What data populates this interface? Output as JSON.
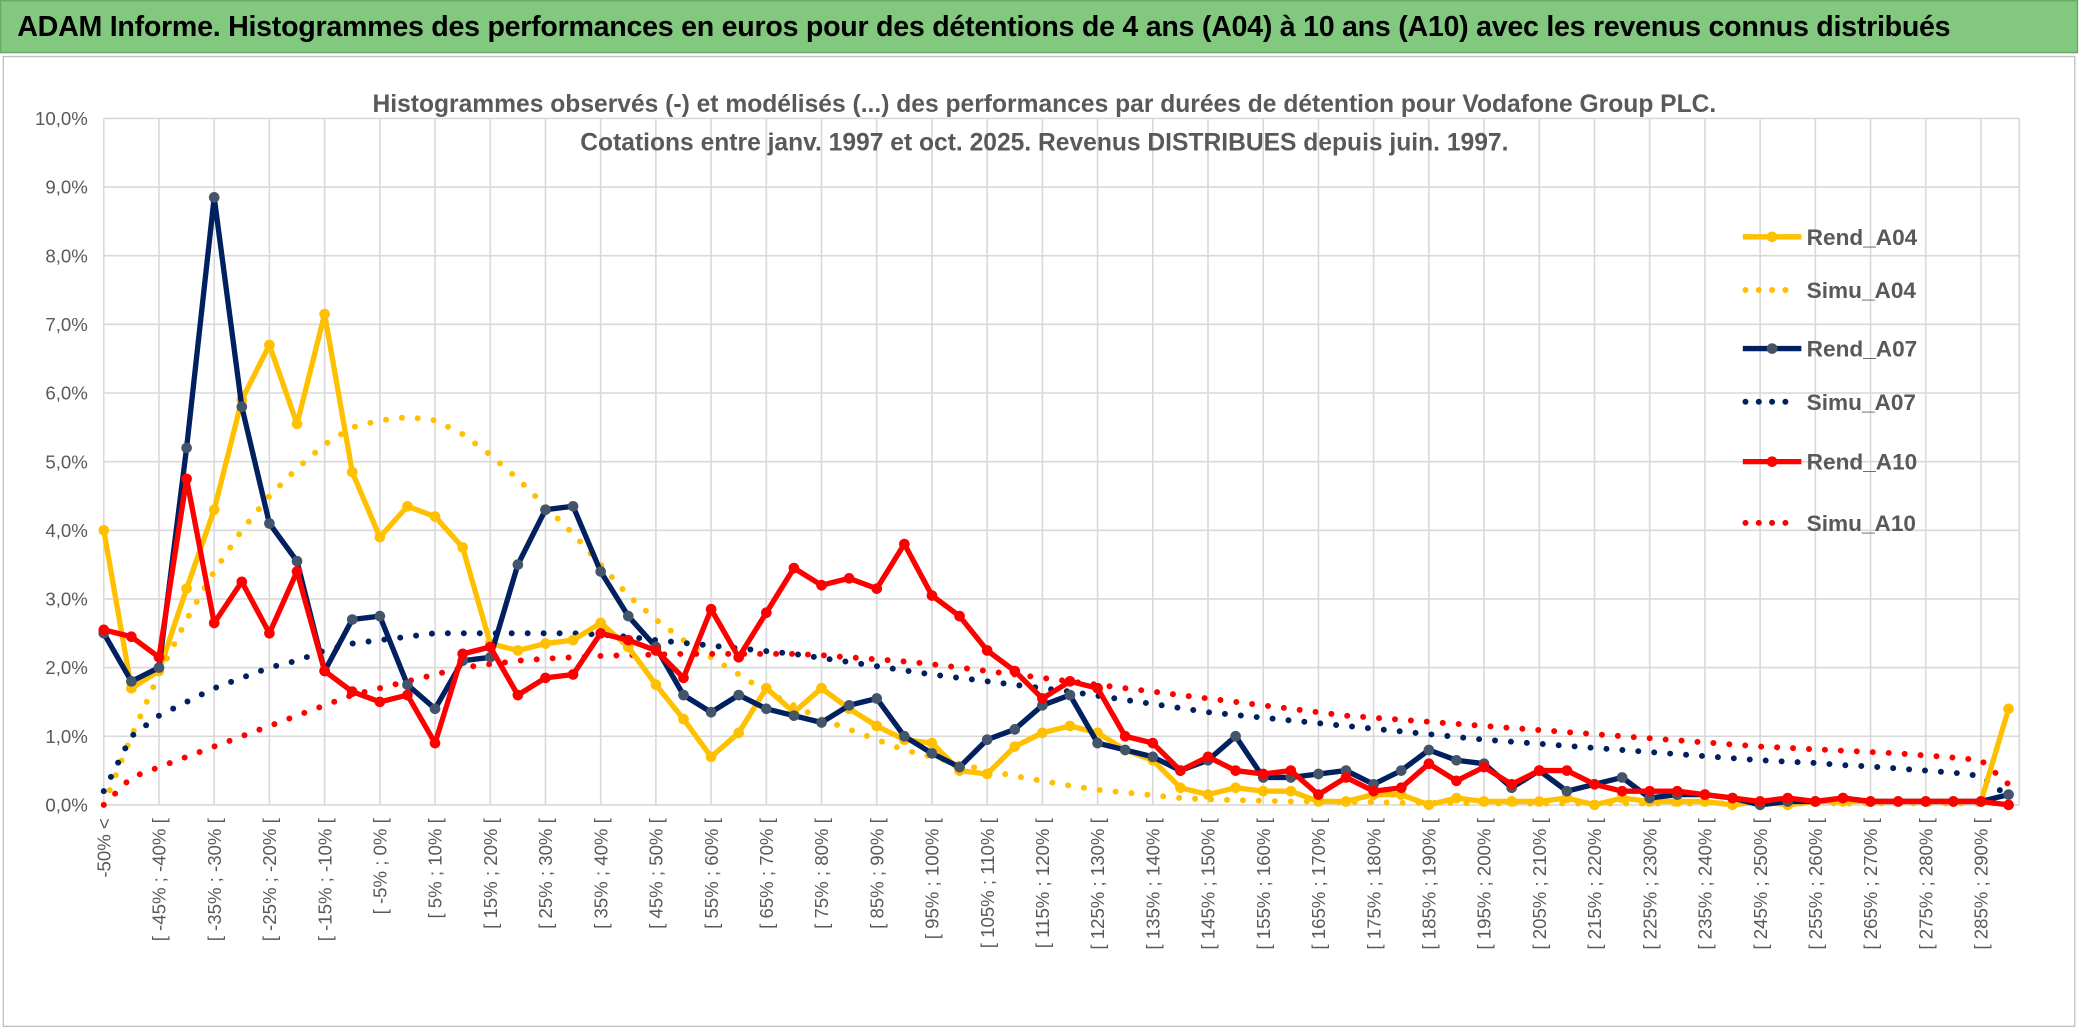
{
  "banner": {
    "title": "ADAM Informe. Histogrammes des performances en euros pour des détentions de 4 ans (A04) à 10 ans (A10) avec les revenus connus distribués"
  },
  "chart_data": {
    "type": "line",
    "title_line1": "Histogrammes observés (-) et modélisés (...) des performances par durées de détention pour Vodafone Group PLC.",
    "title_line2": "Cotations entre janv. 1997 et oct. 2025. Revenus DISTRIBUES depuis juin. 1997.",
    "xlabel": "",
    "ylabel": "",
    "ylim": [
      0,
      10
    ],
    "ytick_labels": [
      "0,0%",
      "1,0%",
      "2,0%",
      "3,0%",
      "4,0%",
      "5,0%",
      "6,0%",
      "7,0%",
      "8,0%",
      "9,0%",
      "10,0%"
    ],
    "x_tick_labels": [
      "-50% <",
      "[ -45% ; -40% [",
      "[ -35% ; -30% [",
      "[ -25% ; -20% [",
      "[ -15% ; -10% [",
      "[ -5% ; 0% [",
      "[ 5% ; 10% [",
      "[ 15% ; 20% [",
      "[ 25% ; 30% [",
      "[ 35% ; 40% [",
      "[ 45% ; 50% [",
      "[ 55% ; 60% [",
      "[ 65% ; 70% [",
      "[ 75% ; 80% [",
      "[ 85% ; 90% [",
      "[ 95% ; 100% [",
      "[ 105% ; 110% [",
      "[ 115% ; 120% [",
      "[ 125% ; 130% [",
      "[ 135% ; 140% [",
      "[ 145% ; 150% [",
      "[ 155% ; 160% [",
      "[ 165% ; 170% [",
      "[ 175% ; 180% [",
      "[ 185% ; 190% [",
      "[ 195% ; 200% [",
      "[ 205% ; 210% [",
      "[ 215% ; 220% [",
      "[ 225% ; 230% [",
      "[ 235% ; 240% [",
      "[ 245% ; 250% [",
      "[ 255% ; 260% [",
      "[ 265% ; 270% [",
      "[ 275% ; 280% [",
      "[ 285% ; 290% ["
    ],
    "bin_count": 70,
    "grid": true,
    "legend_position": "right",
    "series": [
      {
        "name": "Rend_A04",
        "style": "solid",
        "color": "#ffc000",
        "marker_color": "#ffc000",
        "values": [
          4.0,
          1.7,
          1.95,
          3.15,
          4.3,
          5.9,
          6.7,
          5.55,
          7.15,
          4.85,
          3.9,
          4.35,
          4.2,
          3.75,
          2.35,
          2.25,
          2.35,
          2.4,
          2.65,
          2.3,
          1.75,
          1.25,
          0.7,
          1.05,
          1.7,
          1.35,
          1.7,
          1.4,
          1.15,
          0.95,
          0.9,
          0.5,
          0.45,
          0.85,
          1.05,
          1.15,
          1.05,
          0.8,
          0.65,
          0.25,
          0.15,
          0.25,
          0.2,
          0.2,
          0.05,
          0.05,
          0.15,
          0.15,
          0.0,
          0.1,
          0.05,
          0.05,
          0.05,
          0.1,
          0.0,
          0.1,
          0.05,
          0.05,
          0.05,
          0.0,
          0.05,
          0.0,
          0.05,
          0.05,
          0.05,
          0.05,
          0.05,
          0.05,
          0.05,
          1.4
        ]
      },
      {
        "name": "Simu_A04",
        "style": "dotted",
        "color": "#ffc000",
        "values": [
          0.0,
          1.0,
          1.9,
          2.7,
          3.4,
          4.0,
          4.5,
          4.9,
          5.25,
          5.5,
          5.6,
          5.65,
          5.6,
          5.4,
          5.1,
          4.75,
          4.35,
          3.95,
          3.5,
          3.05,
          2.7,
          2.4,
          2.15,
          1.9,
          1.65,
          1.45,
          1.25,
          1.1,
          0.95,
          0.8,
          0.7,
          0.6,
          0.5,
          0.42,
          0.35,
          0.28,
          0.22,
          0.18,
          0.14,
          0.1,
          0.08,
          0.07,
          0.06,
          0.05,
          0.05,
          0.04,
          0.04,
          0.03,
          0.03,
          0.03,
          0.02,
          0.02,
          0.02,
          0.02,
          0.02,
          0.02,
          0.02,
          0.02,
          0.02,
          0.02,
          0.02,
          0.02,
          0.02,
          0.02,
          0.02,
          0.02,
          0.02,
          0.02,
          0.02,
          0.02
        ]
      },
      {
        "name": "Rend_A07",
        "style": "solid",
        "color": "#002060",
        "marker_color": "#44546a",
        "values": [
          2.5,
          1.8,
          2.0,
          5.2,
          8.85,
          5.8,
          4.1,
          3.55,
          1.95,
          2.7,
          2.75,
          1.75,
          1.4,
          2.1,
          2.15,
          3.5,
          4.3,
          4.35,
          3.4,
          2.75,
          2.3,
          1.6,
          1.35,
          1.6,
          1.4,
          1.3,
          1.2,
          1.45,
          1.55,
          1.0,
          0.75,
          0.55,
          0.95,
          1.1,
          1.45,
          1.6,
          0.9,
          0.8,
          0.7,
          0.5,
          0.65,
          1.0,
          0.4,
          0.4,
          0.45,
          0.5,
          0.3,
          0.5,
          0.8,
          0.65,
          0.6,
          0.25,
          0.5,
          0.2,
          0.3,
          0.4,
          0.1,
          0.15,
          0.15,
          0.1,
          0.0,
          0.05,
          0.05,
          0.1,
          0.05,
          0.05,
          0.05,
          0.05,
          0.05,
          0.15
        ]
      },
      {
        "name": "Simu_A07",
        "style": "dotted",
        "color": "#002060",
        "values": [
          0.2,
          1.0,
          1.3,
          1.5,
          1.7,
          1.85,
          2.0,
          2.1,
          2.25,
          2.35,
          2.4,
          2.45,
          2.5,
          2.5,
          2.5,
          2.5,
          2.5,
          2.5,
          2.48,
          2.45,
          2.4,
          2.36,
          2.32,
          2.28,
          2.24,
          2.2,
          2.14,
          2.08,
          2.02,
          1.96,
          1.9,
          1.85,
          1.8,
          1.75,
          1.7,
          1.65,
          1.59,
          1.53,
          1.47,
          1.41,
          1.35,
          1.31,
          1.27,
          1.23,
          1.19,
          1.15,
          1.11,
          1.07,
          1.03,
          0.99,
          0.95,
          0.92,
          0.89,
          0.86,
          0.83,
          0.8,
          0.77,
          0.74,
          0.71,
          0.68,
          0.65,
          0.63,
          0.61,
          0.58,
          0.56,
          0.53,
          0.5,
          0.47,
          0.42,
          0.12
        ]
      },
      {
        "name": "Rend_A10",
        "style": "solid",
        "color": "#ff0000",
        "marker_color": "#ff0000",
        "values": [
          2.55,
          2.45,
          2.15,
          4.75,
          2.65,
          3.25,
          2.5,
          3.4,
          1.95,
          1.65,
          1.5,
          1.6,
          0.9,
          2.2,
          2.3,
          1.6,
          1.85,
          1.9,
          2.5,
          2.4,
          2.25,
          1.85,
          2.85,
          2.15,
          2.8,
          3.45,
          3.2,
          3.3,
          3.15,
          3.8,
          3.05,
          2.75,
          2.25,
          1.95,
          1.55,
          1.8,
          1.7,
          1.0,
          0.9,
          0.5,
          0.7,
          0.5,
          0.45,
          0.5,
          0.15,
          0.4,
          0.2,
          0.25,
          0.6,
          0.35,
          0.55,
          0.3,
          0.5,
          0.5,
          0.3,
          0.2,
          0.2,
          0.2,
          0.15,
          0.1,
          0.05,
          0.1,
          0.05,
          0.1,
          0.05,
          0.05,
          0.05,
          0.05,
          0.05,
          0.0
        ]
      },
      {
        "name": "Simu_A10",
        "style": "dotted",
        "color": "#ff0000",
        "values": [
          0.0,
          0.4,
          0.55,
          0.7,
          0.85,
          1.0,
          1.15,
          1.3,
          1.45,
          1.6,
          1.7,
          1.8,
          1.9,
          2.0,
          2.05,
          2.1,
          2.13,
          2.15,
          2.17,
          2.18,
          2.19,
          2.2,
          2.2,
          2.2,
          2.2,
          2.2,
          2.18,
          2.15,
          2.12,
          2.09,
          2.05,
          2.0,
          1.95,
          1.9,
          1.85,
          1.8,
          1.75,
          1.7,
          1.65,
          1.6,
          1.55,
          1.5,
          1.45,
          1.4,
          1.35,
          1.3,
          1.27,
          1.24,
          1.21,
          1.18,
          1.15,
          1.12,
          1.09,
          1.06,
          1.03,
          1.0,
          0.97,
          0.94,
          0.91,
          0.88,
          0.85,
          0.83,
          0.81,
          0.79,
          0.77,
          0.75,
          0.72,
          0.69,
          0.65,
          0.3
        ]
      }
    ]
  }
}
